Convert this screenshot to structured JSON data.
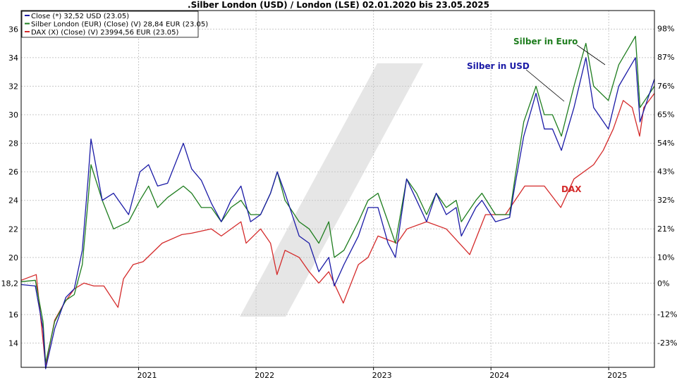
{
  "chart_data": {
    "type": "line",
    "title": ".Silber London (USD) / London (LSE) 02.01.2020 bis 23.05.2025",
    "x_range": [
      "2020-01-02",
      "2025-05-23"
    ],
    "x_ticks": [
      "2021",
      "2022",
      "2023",
      "2024",
      "2025"
    ],
    "y_left": {
      "range": [
        12.3,
        37.3
      ],
      "ticks": [
        14,
        16,
        18.2,
        20,
        22,
        24,
        26,
        28,
        30,
        32,
        34,
        36
      ],
      "tick_labels": [
        "14",
        "16",
        "18,2",
        "20",
        "22",
        "24",
        "26",
        "28",
        "30",
        "32",
        "34",
        "36"
      ]
    },
    "y_right": {
      "ticks": [
        -23,
        -12,
        0,
        10,
        21,
        32,
        43,
        54,
        65,
        76,
        87,
        98
      ],
      "tick_labels": [
        "-23%",
        "-12%",
        "0%",
        "10%",
        "21%",
        "32%",
        "43%",
        "54%",
        "65%",
        "76%",
        "87%",
        "98%"
      ]
    },
    "grid": true,
    "legend": {
      "placement": "top-left",
      "entries": [
        {
          "label": "Close (*) 32,52 USD (23.05)",
          "color": "#1a1aa6"
        },
        {
          "label": "Silber London (EUR) (Close) (V) 28,84 EUR (23.05)",
          "color": "#1e7d1e"
        },
        {
          "label": "DAX (X) (Close) (V) 23994,56 EUR (23.05)",
          "color": "#d42a2a"
        }
      ]
    },
    "annotations": [
      {
        "text": "Silber in Euro",
        "color": "#1e7d1e",
        "series": "green"
      },
      {
        "text": "Silber in USD",
        "color": "#1a1aa6",
        "series": "blue"
      },
      {
        "text": "DAX",
        "color": "#d42a2a",
        "series": "red"
      }
    ],
    "series": [
      {
        "color": "#1a1aa6",
        "x": [
          "2020-01-02",
          "2020-02-15",
          "2020-03-10",
          "2020-03-18",
          "2020-04-15",
          "2020-05-20",
          "2020-06-15",
          "2020-07-10",
          "2020-07-28",
          "2020-08-06",
          "2020-09-10",
          "2020-10-15",
          "2020-12-01",
          "2021-01-05",
          "2021-02-01",
          "2021-03-01",
          "2021-04-01",
          "2021-05-20",
          "2021-06-15",
          "2021-07-15",
          "2021-08-15",
          "2021-09-15",
          "2021-10-15",
          "2021-11-15",
          "2021-12-15",
          "2022-01-15",
          "2022-02-15",
          "2022-03-08",
          "2022-04-01",
          "2022-05-15",
          "2022-06-15",
          "2022-07-15",
          "2022-08-15",
          "2022-09-01",
          "2022-10-01",
          "2022-11-15",
          "2022-12-15",
          "2023-01-15",
          "2023-02-15",
          "2023-03-10",
          "2023-04-14",
          "2023-05-15",
          "2023-06-15",
          "2023-07-15",
          "2023-08-15",
          "2023-09-15",
          "2023-10-01",
          "2023-11-15",
          "2023-12-04",
          "2024-01-15",
          "2024-02-28",
          "2024-03-15",
          "2024-04-12",
          "2024-05-20",
          "2024-06-15",
          "2024-07-10",
          "2024-08-07",
          "2024-09-15",
          "2024-10-22",
          "2024-11-15",
          "2024-12-31",
          "2025-02-01",
          "2025-03-25",
          "2025-04-08",
          "2025-05-23"
        ],
        "y": [
          18.1,
          18.0,
          15.0,
          12.2,
          15.0,
          17.2,
          17.8,
          20.5,
          25.5,
          28.3,
          24.0,
          24.5,
          23.0,
          26.0,
          26.5,
          25.0,
          25.2,
          28.0,
          26.2,
          25.4,
          23.8,
          22.5,
          24.0,
          25.0,
          22.5,
          23.0,
          24.5,
          26.0,
          24.5,
          21.5,
          21.0,
          19.0,
          20.0,
          18.0,
          19.5,
          21.5,
          23.5,
          23.5,
          21.0,
          20.0,
          25.5,
          24.0,
          22.5,
          24.5,
          23.0,
          23.5,
          21.5,
          23.5,
          24.0,
          22.5,
          22.8,
          25.0,
          28.5,
          31.5,
          29.0,
          29.0,
          27.5,
          30.5,
          34.0,
          30.5,
          29.0,
          32.0,
          34.0,
          29.5,
          32.5
        ]
      },
      {
        "color": "#1e7d1e",
        "x": [
          "2020-01-02",
          "2020-02-15",
          "2020-03-10",
          "2020-03-18",
          "2020-04-15",
          "2020-05-20",
          "2020-06-15",
          "2020-07-10",
          "2020-07-28",
          "2020-08-06",
          "2020-09-10",
          "2020-10-15",
          "2020-12-01",
          "2021-01-05",
          "2021-02-01",
          "2021-03-01",
          "2021-04-01",
          "2021-05-20",
          "2021-06-15",
          "2021-07-15",
          "2021-08-15",
          "2021-09-15",
          "2021-10-15",
          "2021-11-15",
          "2021-12-15",
          "2022-01-15",
          "2022-02-15",
          "2022-03-08",
          "2022-04-01",
          "2022-05-15",
          "2022-06-15",
          "2022-07-15",
          "2022-08-15",
          "2022-09-01",
          "2022-10-01",
          "2022-11-15",
          "2022-12-15",
          "2023-01-15",
          "2023-02-15",
          "2023-03-10",
          "2023-04-14",
          "2023-05-15",
          "2023-06-15",
          "2023-07-15",
          "2023-08-15",
          "2023-09-15",
          "2023-10-01",
          "2023-11-15",
          "2023-12-04",
          "2024-01-15",
          "2024-02-28",
          "2024-03-15",
          "2024-04-12",
          "2024-05-20",
          "2024-06-15",
          "2024-07-10",
          "2024-08-07",
          "2024-09-15",
          "2024-10-22",
          "2024-11-15",
          "2024-12-31",
          "2025-02-01",
          "2025-03-25",
          "2025-04-08",
          "2025-05-23"
        ],
        "y": [
          18.3,
          18.4,
          15.5,
          12.6,
          15.5,
          17.0,
          17.4,
          19.5,
          24.0,
          26.5,
          24.0,
          22.0,
          22.5,
          24.0,
          25.0,
          23.5,
          24.2,
          25.0,
          24.5,
          23.5,
          23.5,
          22.5,
          23.5,
          24.0,
          23.0,
          23.0,
          24.5,
          26.0,
          24.0,
          22.5,
          22.0,
          21.0,
          22.5,
          20.0,
          20.5,
          22.5,
          24.0,
          24.5,
          22.5,
          21.0,
          25.5,
          24.5,
          23.0,
          24.5,
          23.5,
          24.0,
          22.5,
          24.0,
          24.5,
          23.0,
          23.0,
          25.5,
          29.5,
          32.0,
          30.0,
          30.0,
          28.5,
          32.0,
          35.0,
          32.0,
          31.0,
          33.5,
          35.5,
          30.5,
          32.0
        ]
      },
      {
        "color": "#d42a2a",
        "x": [
          "2020-01-02",
          "2020-02-18",
          "2020-03-18",
          "2020-04-15",
          "2020-05-15",
          "2020-06-15",
          "2020-07-15",
          "2020-08-15",
          "2020-09-15",
          "2020-10-29",
          "2020-11-15",
          "2020-12-15",
          "2021-01-15",
          "2021-03-15",
          "2021-05-15",
          "2021-06-15",
          "2021-08-15",
          "2021-09-15",
          "2021-11-15",
          "2021-12-01",
          "2022-01-15",
          "2022-02-15",
          "2022-03-07",
          "2022-04-01",
          "2022-05-15",
          "2022-06-15",
          "2022-07-15",
          "2022-08-15",
          "2022-09-29",
          "2022-11-15",
          "2022-12-15",
          "2023-01-15",
          "2023-03-15",
          "2023-04-15",
          "2023-06-15",
          "2023-08-15",
          "2023-10-27",
          "2023-12-15",
          "2024-02-15",
          "2024-04-15",
          "2024-06-15",
          "2024-08-05",
          "2024-09-15",
          "2024-11-15",
          "2024-12-15",
          "2025-01-15",
          "2025-02-15",
          "2025-03-15",
          "2025-04-07",
          "2025-04-20",
          "2025-05-23"
        ],
        "y": [
          18.4,
          18.8,
          12.4,
          15.6,
          16.8,
          17.8,
          18.2,
          18.0,
          18.0,
          16.5,
          18.5,
          19.5,
          19.7,
          21.0,
          21.6,
          21.7,
          22.0,
          21.5,
          22.5,
          21.0,
          22.0,
          21.0,
          18.8,
          20.5,
          20.0,
          19.0,
          18.2,
          19.0,
          16.8,
          19.5,
          20.0,
          21.5,
          21.0,
          22.0,
          22.5,
          22.0,
          20.2,
          23.0,
          23.0,
          25.0,
          25.0,
          23.5,
          25.5,
          26.5,
          27.5,
          29.0,
          31.0,
          30.5,
          28.5,
          30.5,
          31.5
        ]
      }
    ]
  }
}
